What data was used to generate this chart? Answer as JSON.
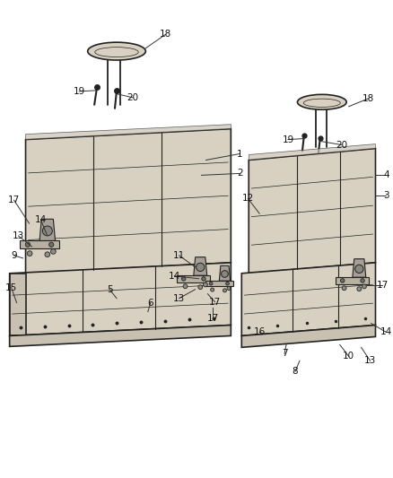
{
  "background_color": "#ffffff",
  "line_color": "#222222",
  "seat_fill": "#c8c0b0",
  "seat_fill2": "#d8d0c0",
  "seat_dark": "#a09888",
  "bracket_fill": "#b0a898",
  "bracket_dark": "#888078"
}
